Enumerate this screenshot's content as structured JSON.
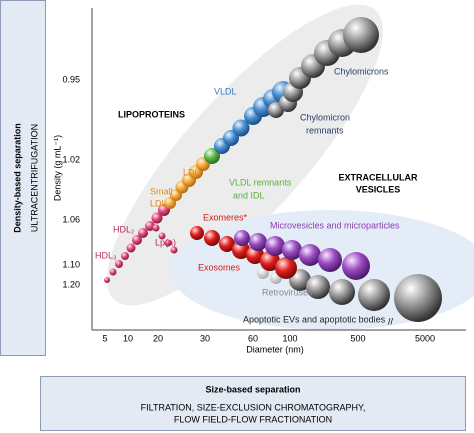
{
  "left_panel": {
    "title": "Density-based separation",
    "subtitle": "ULTRACENTRIFUGATION"
  },
  "bottom_panel": {
    "title": "Size-based separation",
    "lines": [
      "FILTRATION, SIZE-EXCLUSION CHROMATOGRAPHY,",
      "FLOW FIELD-FLOW FRACTIONATION"
    ]
  },
  "axes": {
    "y_label": "Density (g mL⁻¹)",
    "x_label": "Diameter (nm)",
    "y_ticks": [
      "0.95",
      "1.02",
      "1.06",
      "1.10",
      "1.20"
    ],
    "x_ticks": [
      "5",
      "10",
      "20",
      "30",
      "60",
      "100",
      "500",
      "5000"
    ],
    "x_break": "//"
  },
  "labels": {
    "lipoproteins": "LIPOPROTEINS",
    "vldl": "VLDL",
    "chylomicrons": "Chylomicrons",
    "chylomicron_remnants": [
      "Chylomicron",
      "remnants"
    ],
    "ldl": "LDL",
    "vldl_remnants": [
      "VLDL remnants",
      "and IDL"
    ],
    "small_ldl": [
      "Small",
      "LDL"
    ],
    "hdl2": "HDL₂",
    "lpa": "Lp(a)",
    "hdl3": "HDL₃",
    "extracellular_vesicles": [
      "EXTRACELLULAR",
      "VESICLES"
    ],
    "exomeres": "Exomeres*",
    "microvesicles": "Microvesicles and microparticles",
    "exosomes": "Exosomes",
    "retroviruses": "Retroviruses",
    "apoptotic": "Apoptotic EVs and apoptotic bodies"
  }
}
